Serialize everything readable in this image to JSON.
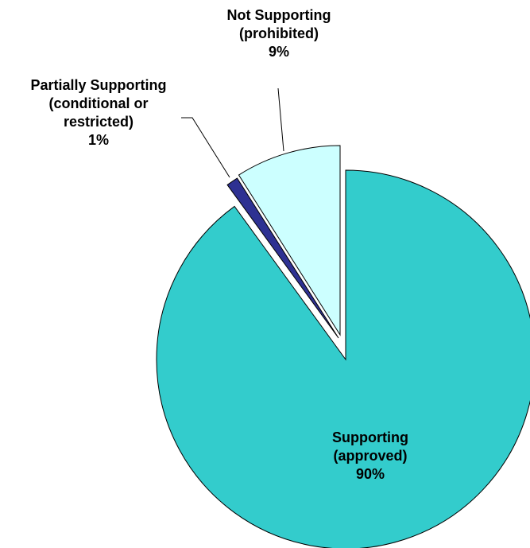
{
  "chart_data": {
    "type": "pie",
    "slices": [
      {
        "label": [
          "Supporting",
          "(approved)",
          "90%"
        ],
        "value": 90,
        "color": "#33cccc"
      },
      {
        "label": [
          "Partially Supporting",
          "(conditional or",
          "restricted)",
          "1%"
        ],
        "value": 1,
        "color": "#2e3192"
      },
      {
        "label": [
          "Not Supporting",
          "(prohibited)",
          "9%"
        ],
        "value": 9,
        "color": "#ccffff"
      }
    ],
    "start_angle": "12 o'clock",
    "direction": "clockwise",
    "exploded": true,
    "legend": "none"
  }
}
